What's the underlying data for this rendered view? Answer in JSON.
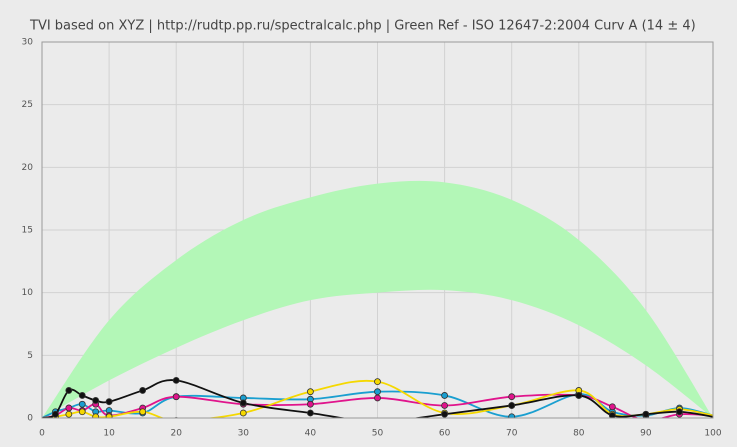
{
  "chart_data": {
    "type": "line",
    "title": "TVI based on XYZ  |  http://rudtp.pp.ru/spectralcalc.php  |  Green Ref - ISO 12647-2:2004 Curv A (14 ± 4)",
    "x": [
      0,
      2,
      4,
      6,
      8,
      10,
      15,
      20,
      30,
      40,
      50,
      60,
      70,
      80,
      85,
      90,
      95,
      100
    ],
    "series": [
      {
        "color": "#1a9fd0",
        "values": [
          0,
          0.5,
          0.8,
          1.1,
          0.5,
          0.6,
          0.4,
          1.7,
          1.6,
          1.5,
          2.1,
          1.8,
          0.1,
          1.9,
          0.5,
          0.2,
          0.8,
          0.2
        ]
      },
      {
        "color": "#e0148c",
        "values": [
          0,
          0.2,
          0.8,
          0.6,
          1.1,
          0.2,
          0.8,
          1.7,
          1.1,
          1.1,
          1.6,
          1.0,
          1.7,
          1.8,
          0.9,
          -0.2,
          0.3,
          0.2
        ]
      },
      {
        "color": "#f5d800",
        "values": [
          0,
          0.1,
          0.3,
          0.5,
          0.1,
          0.1,
          0.5,
          -0.2,
          0.4,
          2.1,
          2.9,
          0.4,
          1.0,
          2.2,
          0.3,
          0.3,
          0.7,
          0.2
        ]
      },
      {
        "color": "#111111",
        "values": [
          0,
          0.3,
          2.2,
          1.8,
          1.4,
          1.3,
          2.2,
          3.0,
          1.2,
          0.4,
          -0.3,
          0.3,
          1.0,
          1.8,
          0.2,
          0.3,
          0.5,
          0.1
        ]
      }
    ],
    "band": {
      "color": "#b3f7b7",
      "x": [
        0,
        10,
        20,
        30,
        40,
        50,
        60,
        70,
        80,
        90,
        100
      ],
      "upper": [
        0,
        7.8,
        12.6,
        15.8,
        17.6,
        18.7,
        18.8,
        17.4,
        14.2,
        8.6,
        0
      ],
      "lower": [
        0,
        3.0,
        5.6,
        7.8,
        9.4,
        10.0,
        10.2,
        9.4,
        7.4,
        4.2,
        0
      ]
    },
    "xlim": [
      0,
      100
    ],
    "xticks": [
      0,
      10,
      20,
      30,
      40,
      50,
      60,
      70,
      80,
      90,
      100
    ],
    "ylim": [
      0,
      30
    ],
    "yticks": [
      0,
      5,
      10,
      15,
      20,
      25,
      30
    ],
    "grid": true
  }
}
